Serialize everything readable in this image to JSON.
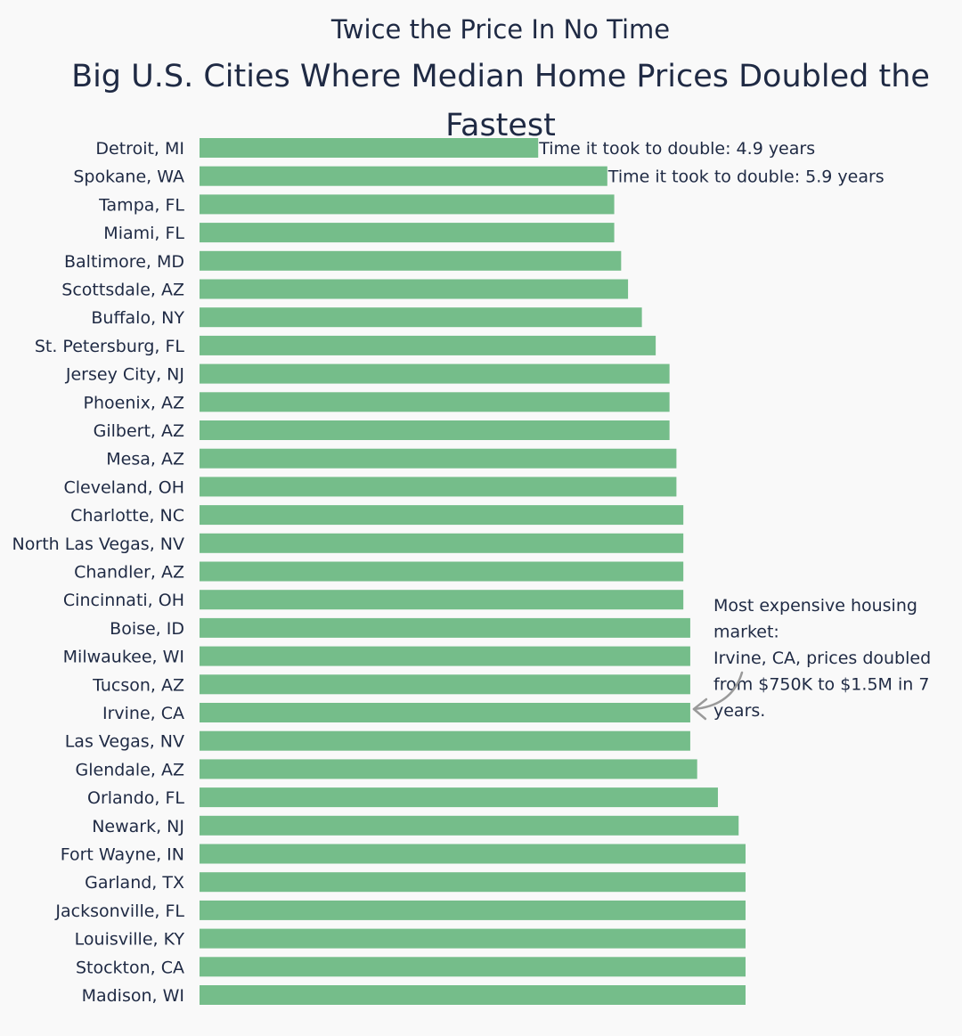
{
  "chart_data": {
    "type": "bar",
    "orientation": "horizontal",
    "subtitle": "Twice the Price In No Time",
    "title_line1": "Big U.S. Cities Where Median Home Prices Doubled the",
    "title_line2": "Fastest",
    "bar_color": "#75bd8a",
    "text_color": "#1f2a44",
    "categories": [
      "Detroit, MI",
      "Spokane, WA",
      "Tampa, FL",
      "Miami, FL",
      "Baltimore, MD",
      "Scottsdale, AZ",
      "Buffalo, NY",
      "St. Petersburg, FL",
      "Jersey City, NJ",
      "Phoenix, AZ",
      "Gilbert, AZ",
      "Mesa, AZ",
      "Cleveland, OH",
      "Charlotte, NC",
      "North Las Vegas, NV",
      "Chandler, AZ",
      "Cincinnati, OH",
      "Boise, ID",
      "Milwaukee, WI",
      "Tucson, AZ",
      "Irvine, CA",
      "Las Vegas, NV",
      "Glendale, AZ",
      "Orlando, FL",
      "Newark, NJ",
      "Fort Wayne, IN",
      "Garland, TX",
      "Jacksonville, FL",
      "Louisville, KY",
      "Stockton, CA",
      "Madison, WI"
    ],
    "values": [
      4.9,
      5.9,
      6.0,
      6.0,
      6.1,
      6.2,
      6.4,
      6.6,
      6.8,
      6.8,
      6.8,
      6.9,
      6.9,
      7.0,
      7.0,
      7.0,
      7.0,
      7.1,
      7.1,
      7.1,
      7.1,
      7.1,
      7.2,
      7.5,
      7.8,
      7.9,
      7.9,
      7.9,
      7.9,
      7.9,
      7.9
    ],
    "xlim": [
      0,
      7.9
    ],
    "bar_labels": [
      {
        "index": 0,
        "text": "Time it took to double: 4.9 years"
      },
      {
        "index": 1,
        "text": "Time it took to double: 5.9 years"
      }
    ],
    "annotation": {
      "target_index": 20,
      "lines": [
        "Most expensive housing",
        "market:",
        "Irvine, CA, prices doubled",
        "from $750K to $1.5M in 7",
        "years."
      ]
    }
  }
}
